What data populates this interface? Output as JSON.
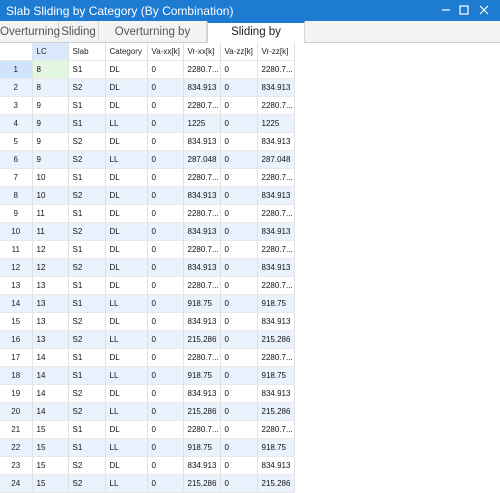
{
  "window": {
    "title": "Slab Sliding by Category (By Combination)"
  },
  "tabs": [
    {
      "label": "Overturning"
    },
    {
      "label": "Sliding"
    },
    {
      "label": "Overturning by Category"
    },
    {
      "label": "Sliding by Category"
    }
  ],
  "table": {
    "headers": [
      "LC",
      "Slab",
      "Category",
      "Va-xx[k]",
      "Vr-xx[k]",
      "Va-zz[k]",
      "Vr-zz[k]"
    ],
    "rows": [
      [
        "1",
        "8",
        "S1",
        "DL",
        "0",
        "2280.7...",
        "0",
        "2280.7..."
      ],
      [
        "2",
        "8",
        "S2",
        "DL",
        "0",
        "834.913",
        "0",
        "834.913"
      ],
      [
        "3",
        "9",
        "S1",
        "DL",
        "0",
        "2280.7...",
        "0",
        "2280.7..."
      ],
      [
        "4",
        "9",
        "S1",
        "LL",
        "0",
        "1225",
        "0",
        "1225"
      ],
      [
        "5",
        "9",
        "S2",
        "DL",
        "0",
        "834.913",
        "0",
        "834.913"
      ],
      [
        "6",
        "9",
        "S2",
        "LL",
        "0",
        "287.048",
        "0",
        "287.048"
      ],
      [
        "7",
        "10",
        "S1",
        "DL",
        "0",
        "2280.7...",
        "0",
        "2280.7..."
      ],
      [
        "8",
        "10",
        "S2",
        "DL",
        "0",
        "834.913",
        "0",
        "834.913"
      ],
      [
        "9",
        "11",
        "S1",
        "DL",
        "0",
        "2280.7...",
        "0",
        "2280.7..."
      ],
      [
        "10",
        "11",
        "S2",
        "DL",
        "0",
        "834.913",
        "0",
        "834.913"
      ],
      [
        "11",
        "12",
        "S1",
        "DL",
        "0",
        "2280.7...",
        "0",
        "2280.7..."
      ],
      [
        "12",
        "12",
        "S2",
        "DL",
        "0",
        "834.913",
        "0",
        "834.913"
      ],
      [
        "13",
        "13",
        "S1",
        "DL",
        "0",
        "2280.7...",
        "0",
        "2280.7..."
      ],
      [
        "14",
        "13",
        "S1",
        "LL",
        "0",
        "918.75",
        "0",
        "918.75"
      ],
      [
        "15",
        "13",
        "S2",
        "DL",
        "0",
        "834.913",
        "0",
        "834.913"
      ],
      [
        "16",
        "13",
        "S2",
        "LL",
        "0",
        "215.286",
        "0",
        "215.286"
      ],
      [
        "17",
        "14",
        "S1",
        "DL",
        "0",
        "2280.7...",
        "0",
        "2280.7..."
      ],
      [
        "18",
        "14",
        "S1",
        "LL",
        "0",
        "918.75",
        "0",
        "918.75"
      ],
      [
        "19",
        "14",
        "S2",
        "DL",
        "0",
        "834.913",
        "0",
        "834.913"
      ],
      [
        "20",
        "14",
        "S2",
        "LL",
        "0",
        "215.286",
        "0",
        "215.286"
      ],
      [
        "21",
        "15",
        "S1",
        "DL",
        "0",
        "2280.7...",
        "0",
        "2280.7..."
      ],
      [
        "22",
        "15",
        "S1",
        "LL",
        "0",
        "918.75",
        "0",
        "918.75"
      ],
      [
        "23",
        "15",
        "S2",
        "DL",
        "0",
        "834.913",
        "0",
        "834.913"
      ],
      [
        "24",
        "15",
        "S2",
        "LL",
        "0",
        "215.286",
        "0",
        "215.286"
      ]
    ]
  },
  "colors": {
    "accent": "#1e7bd2",
    "row_alt": "#eaf3fd",
    "selected_cell": "#e3f6e0"
  }
}
